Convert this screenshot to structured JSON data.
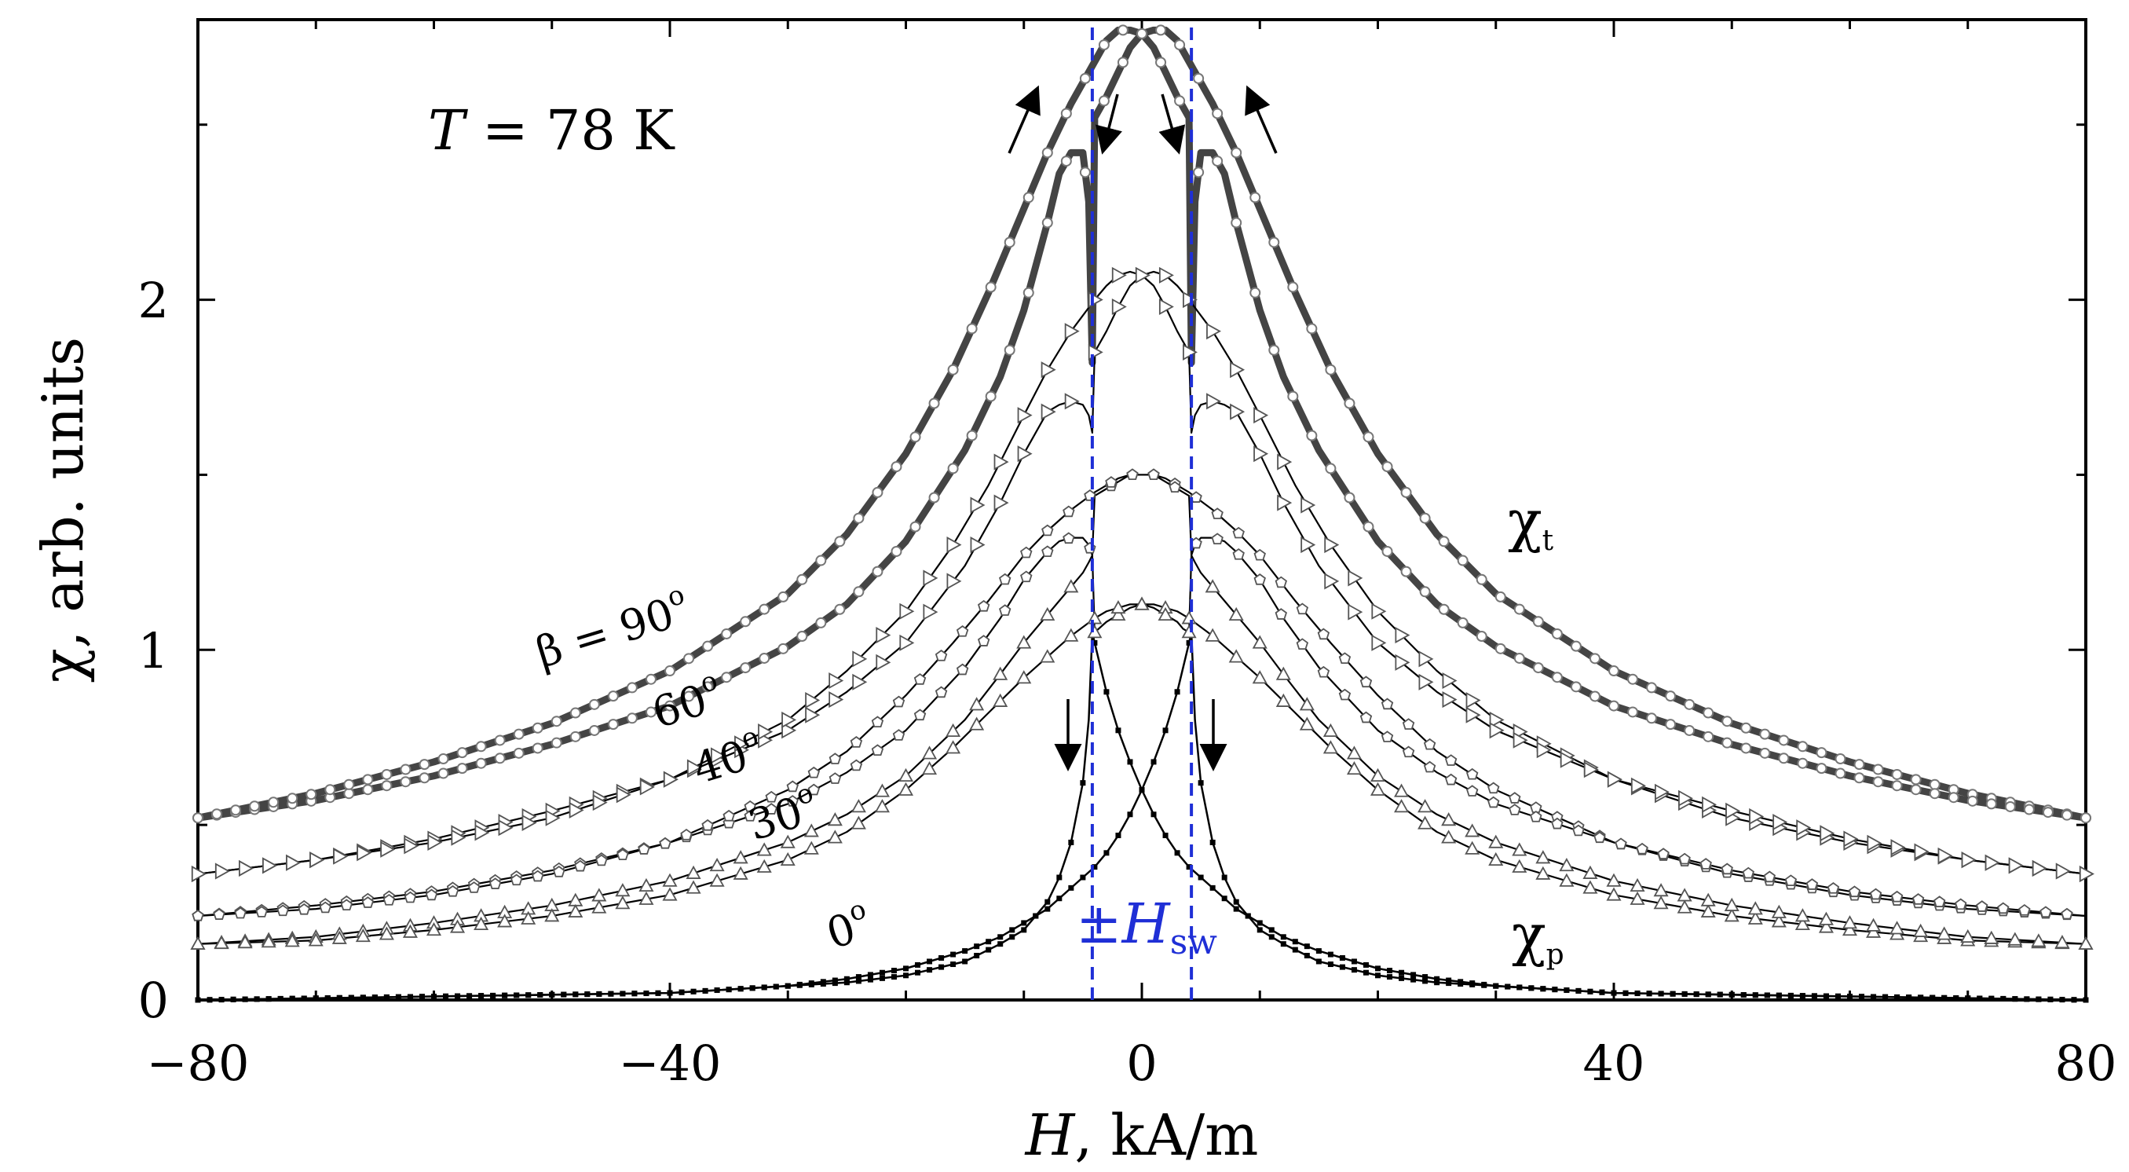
{
  "chart_data": {
    "type": "line",
    "title": "",
    "xlabel_var": "H",
    "xlabel_unit": ", kA/m",
    "ylabel": "χ, arb. units",
    "xlim": [
      -80,
      80
    ],
    "ylim": [
      0,
      2.8
    ],
    "x_ticks": [
      -80,
      -40,
      0,
      40,
      80
    ],
    "x_tick_labels": [
      "−80",
      "−40",
      "0",
      "40",
      "80"
    ],
    "y_ticks": [
      0,
      1,
      2
    ],
    "y_tick_labels": [
      "0",
      "1",
      "2"
    ],
    "grid": false,
    "annotations": {
      "temperature_var": "T",
      "temperature_value": " = 78 K",
      "chi_t_base": "χ",
      "chi_t_sub": "t",
      "chi_p_base": "χ",
      "chi_p_sub": "p",
      "hsw_prefix": "±",
      "hsw_var": "H",
      "hsw_sub": "sw",
      "hsw_value": 4.2,
      "beta_90_prefix": "β = 90",
      "angle_60": "60",
      "angle_40": "40",
      "angle_30": "30",
      "angle_0": "0",
      "degree_mark": "o"
    },
    "series": [
      {
        "key": "b90_up",
        "x": [
          -80,
          -70,
          -60,
          -50,
          -40,
          -30,
          -25,
          -20,
          -15,
          -12,
          -10,
          -8,
          -7,
          -6,
          -5,
          -4.5,
          -4.2,
          -4,
          -3,
          -2,
          -1,
          0,
          1,
          2,
          3,
          4,
          6,
          8,
          10,
          13,
          16,
          20,
          25,
          30,
          40,
          50,
          60,
          70,
          80
        ],
        "y": [
          0.52,
          0.57,
          0.64,
          0.73,
          0.84,
          1.01,
          1.13,
          1.31,
          1.57,
          1.78,
          1.97,
          2.22,
          2.36,
          2.42,
          2.42,
          2.28,
          1.82,
          2.52,
          2.58,
          2.65,
          2.72,
          2.76,
          2.77,
          2.77,
          2.74,
          2.68,
          2.56,
          2.42,
          2.26,
          2.02,
          1.8,
          1.56,
          1.33,
          1.16,
          0.94,
          0.79,
          0.68,
          0.59,
          0.52
        ]
      },
      {
        "key": "b90_down",
        "x": [
          -80,
          -70,
          -60,
          -50,
          -40,
          -30,
          -25,
          -20,
          -16,
          -13,
          -10,
          -8,
          -6,
          -4,
          -3,
          -2,
          -1,
          0,
          1,
          2,
          3,
          3.5,
          4,
          4.2,
          4.5,
          5,
          6,
          7,
          8,
          10,
          12,
          15,
          20,
          25,
          30,
          40,
          50,
          60,
          70,
          80
        ],
        "y": [
          0.52,
          0.59,
          0.68,
          0.79,
          0.94,
          1.16,
          1.33,
          1.56,
          1.8,
          2.02,
          2.26,
          2.42,
          2.56,
          2.68,
          2.74,
          2.77,
          2.77,
          2.76,
          2.72,
          2.65,
          2.58,
          2.55,
          2.52,
          1.82,
          2.28,
          2.42,
          2.42,
          2.36,
          2.22,
          1.97,
          1.78,
          1.57,
          1.31,
          1.13,
          1.01,
          0.84,
          0.73,
          0.64,
          0.57,
          0.52
        ]
      },
      {
        "key": "b60_up",
        "x": [
          -80,
          -70,
          -60,
          -50,
          -40,
          -30,
          -25,
          -20,
          -15,
          -12,
          -10,
          -8,
          -7,
          -6,
          -5,
          -4.5,
          -4.2,
          -4,
          -3,
          -2,
          -1,
          0,
          1,
          2,
          3,
          4,
          6,
          8,
          10,
          13,
          16,
          20,
          25,
          30,
          40,
          50,
          60,
          70,
          80
        ],
        "y": [
          0.36,
          0.4,
          0.46,
          0.54,
          0.63,
          0.77,
          0.88,
          1.02,
          1.24,
          1.42,
          1.56,
          1.68,
          1.7,
          1.71,
          1.7,
          1.67,
          1.62,
          1.85,
          1.91,
          1.98,
          2.04,
          2.07,
          2.08,
          2.07,
          2.04,
          2.0,
          1.91,
          1.8,
          1.67,
          1.47,
          1.3,
          1.11,
          0.94,
          0.8,
          0.63,
          0.52,
          0.45,
          0.4,
          0.36
        ]
      },
      {
        "key": "b60_down",
        "x": [
          -80,
          -70,
          -60,
          -50,
          -40,
          -30,
          -25,
          -20,
          -16,
          -13,
          -10,
          -8,
          -6,
          -4,
          -3,
          -2,
          -1,
          0,
          1,
          2,
          3,
          3.5,
          4,
          4.2,
          4.5,
          5,
          6,
          7,
          8,
          10,
          12,
          15,
          20,
          25,
          30,
          40,
          50,
          60,
          70,
          80
        ],
        "y": [
          0.36,
          0.4,
          0.45,
          0.52,
          0.63,
          0.8,
          0.94,
          1.11,
          1.3,
          1.47,
          1.67,
          1.8,
          1.91,
          2.0,
          2.04,
          2.07,
          2.08,
          2.07,
          2.04,
          1.98,
          1.91,
          1.88,
          1.85,
          1.62,
          1.67,
          1.7,
          1.71,
          1.7,
          1.68,
          1.56,
          1.42,
          1.24,
          1.02,
          0.88,
          0.77,
          0.63,
          0.54,
          0.46,
          0.4,
          0.36
        ]
      },
      {
        "key": "b40_up",
        "x": [
          -80,
          -70,
          -60,
          -50,
          -40,
          -30,
          -25,
          -20,
          -15,
          -12,
          -10,
          -8,
          -7,
          -6,
          -5,
          -4.5,
          -4.2,
          -4,
          -3,
          -2,
          -1,
          0,
          1,
          2,
          3,
          4,
          6,
          8,
          10,
          13,
          16,
          20,
          25,
          30,
          40,
          50,
          60,
          70,
          80
        ],
        "y": [
          0.24,
          0.27,
          0.31,
          0.37,
          0.45,
          0.56,
          0.65,
          0.77,
          0.95,
          1.09,
          1.2,
          1.28,
          1.31,
          1.32,
          1.32,
          1.3,
          1.27,
          1.44,
          1.46,
          1.48,
          1.5,
          1.5,
          1.5,
          1.49,
          1.47,
          1.45,
          1.4,
          1.34,
          1.27,
          1.14,
          1.02,
          0.87,
          0.71,
          0.6,
          0.45,
          0.36,
          0.3,
          0.26,
          0.24
        ]
      },
      {
        "key": "b40_down",
        "x": [
          -80,
          -70,
          -60,
          -50,
          -40,
          -30,
          -25,
          -20,
          -16,
          -13,
          -10,
          -8,
          -6,
          -4,
          -3,
          -2,
          -1,
          0,
          1,
          2,
          3,
          3.5,
          4,
          4.2,
          4.5,
          5,
          6,
          7,
          8,
          10,
          12,
          15,
          20,
          25,
          30,
          40,
          50,
          60,
          70,
          80
        ],
        "y": [
          0.24,
          0.26,
          0.3,
          0.36,
          0.45,
          0.6,
          0.71,
          0.87,
          1.02,
          1.14,
          1.27,
          1.34,
          1.4,
          1.45,
          1.47,
          1.49,
          1.5,
          1.5,
          1.5,
          1.48,
          1.46,
          1.45,
          1.44,
          1.27,
          1.3,
          1.32,
          1.32,
          1.31,
          1.28,
          1.2,
          1.09,
          0.95,
          0.77,
          0.65,
          0.56,
          0.45,
          0.37,
          0.31,
          0.27,
          0.24
        ]
      },
      {
        "key": "b30_up",
        "x": [
          -80,
          -70,
          -60,
          -50,
          -40,
          -30,
          -25,
          -20,
          -15,
          -12,
          -10,
          -8,
          -7,
          -6,
          -5,
          -4.5,
          -4.2,
          -4,
          -3,
          -2,
          -1,
          0,
          1,
          2,
          3,
          4,
          6,
          8,
          10,
          13,
          16,
          20,
          25,
          30,
          40,
          50,
          60,
          70,
          80
        ],
        "y": [
          0.16,
          0.18,
          0.22,
          0.27,
          0.34,
          0.45,
          0.53,
          0.64,
          0.8,
          0.93,
          1.02,
          1.1,
          1.14,
          1.18,
          1.22,
          1.25,
          1.27,
          1.05,
          1.08,
          1.1,
          1.12,
          1.13,
          1.13,
          1.12,
          1.11,
          1.09,
          1.04,
          0.98,
          0.92,
          0.82,
          0.72,
          0.6,
          0.48,
          0.4,
          0.3,
          0.24,
          0.2,
          0.17,
          0.16
        ]
      },
      {
        "key": "b30_down",
        "x": [
          -80,
          -70,
          -60,
          -50,
          -40,
          -30,
          -25,
          -20,
          -16,
          -13,
          -10,
          -8,
          -6,
          -4,
          -3,
          -2,
          -1,
          0,
          1,
          2,
          3,
          3.5,
          4,
          4.2,
          4.5,
          5,
          6,
          7,
          8,
          10,
          12,
          15,
          20,
          25,
          30,
          40,
          50,
          60,
          70,
          80
        ],
        "y": [
          0.16,
          0.17,
          0.2,
          0.24,
          0.3,
          0.4,
          0.48,
          0.6,
          0.72,
          0.82,
          0.92,
          0.98,
          1.04,
          1.09,
          1.11,
          1.12,
          1.13,
          1.13,
          1.12,
          1.1,
          1.08,
          1.06,
          1.05,
          1.27,
          1.25,
          1.22,
          1.18,
          1.14,
          1.1,
          1.02,
          0.93,
          0.8,
          0.64,
          0.53,
          0.45,
          0.34,
          0.27,
          0.22,
          0.18,
          0.16
        ]
      },
      {
        "key": "b0_up",
        "x": [
          -80,
          -60,
          -40,
          -30,
          -25,
          -20,
          -15,
          -12,
          -10,
          -8,
          -7,
          -6,
          -5,
          -4.5,
          -4.2,
          -4,
          -3,
          -2,
          -1,
          0,
          1,
          2,
          3,
          4,
          6,
          8,
          10,
          12,
          15,
          20,
          25,
          30,
          40,
          60,
          80
        ],
        "y": [
          0.0,
          0.01,
          0.02,
          0.04,
          0.05,
          0.07,
          0.11,
          0.16,
          0.2,
          0.28,
          0.35,
          0.45,
          0.62,
          0.8,
          1.05,
          1.02,
          0.88,
          0.77,
          0.68,
          0.6,
          0.53,
          0.47,
          0.42,
          0.38,
          0.32,
          0.26,
          0.22,
          0.18,
          0.14,
          0.09,
          0.06,
          0.04,
          0.02,
          0.01,
          0.0
        ]
      },
      {
        "key": "b0_down",
        "x": [
          -80,
          -60,
          -40,
          -30,
          -25,
          -20,
          -15,
          -12,
          -10,
          -8,
          -6,
          -4,
          -3,
          -2,
          -1,
          0,
          1,
          2,
          3,
          4,
          4.2,
          4.5,
          5,
          6,
          7,
          8,
          10,
          12,
          15,
          20,
          25,
          30,
          40,
          60,
          80
        ],
        "y": [
          0.0,
          0.01,
          0.02,
          0.04,
          0.06,
          0.09,
          0.14,
          0.18,
          0.22,
          0.26,
          0.32,
          0.38,
          0.42,
          0.47,
          0.53,
          0.6,
          0.68,
          0.77,
          0.88,
          1.02,
          1.05,
          0.8,
          0.62,
          0.45,
          0.35,
          0.28,
          0.2,
          0.16,
          0.11,
          0.07,
          0.05,
          0.04,
          0.02,
          0.01,
          0.0
        ]
      }
    ]
  }
}
